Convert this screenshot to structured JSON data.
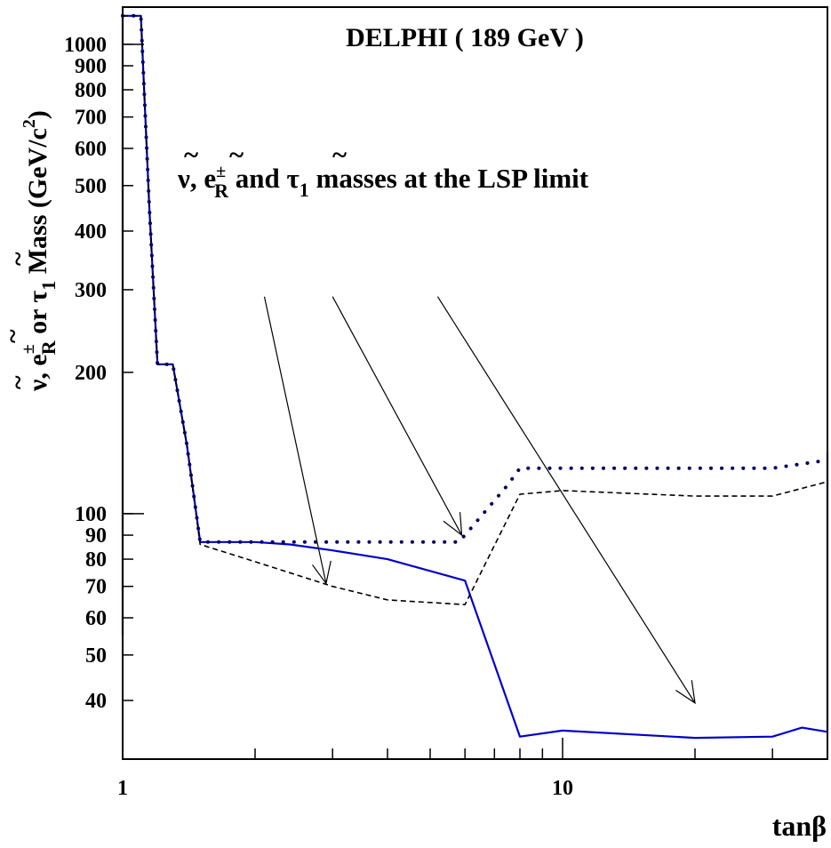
{
  "chart_data": {
    "type": "line",
    "title": "DELPHI ( 189 GeV )",
    "xlabel": "tanβ",
    "ylabel": "ν̃,  ẽR± or τ̃1  Mass (GeV/c²)",
    "ylabel_parts": {
      "nu": "ν",
      "sep1": ",  ",
      "e": "e",
      "e_sub": "R",
      "e_sup": "±",
      "or": " or ",
      "tau": "τ",
      "tau_sub": "1",
      "mass": "  Mass (GeV/c",
      "sq": "2",
      "close": ")"
    },
    "annotation_parts": {
      "nu": "ν",
      "sep": ",  ",
      "e": "e",
      "e_sub": "R",
      "e_sup": "±",
      "and": " and ",
      "tau": "τ",
      "tau_sub": "1",
      "rest": " masses at the LSP limit"
    },
    "annotation_tilde": "~",
    "xscale": "log",
    "yscale": "log",
    "xlim": [
      1,
      40
    ],
    "ylim": [
      30,
      1200
    ],
    "grid": false,
    "x_ticks": [
      {
        "value": 1,
        "label": "1"
      },
      {
        "value": 10,
        "label": "10"
      }
    ],
    "y_ticks": [
      {
        "value": 40,
        "label": "40"
      },
      {
        "value": 50,
        "label": "50"
      },
      {
        "value": 60,
        "label": "60"
      },
      {
        "value": 70,
        "label": "70"
      },
      {
        "value": 80,
        "label": "80"
      },
      {
        "value": 90,
        "label": "90"
      },
      {
        "value": 100,
        "label": "100"
      },
      {
        "value": 200,
        "label": "200"
      },
      {
        "value": 300,
        "label": "300"
      },
      {
        "value": 400,
        "label": "400"
      },
      {
        "value": 500,
        "label": "500"
      },
      {
        "value": 600,
        "label": "600"
      },
      {
        "value": 700,
        "label": "700"
      },
      {
        "value": 800,
        "label": "800"
      },
      {
        "value": 900,
        "label": "900"
      },
      {
        "value": 1000,
        "label": "1000"
      }
    ],
    "series": [
      {
        "style": "solid",
        "color": "#0000cc",
        "points": [
          [
            1.0,
            55
          ],
          [
            1.0,
            1150
          ],
          [
            1.1,
            1150
          ],
          [
            1.15,
            450
          ],
          [
            1.2,
            208
          ],
          [
            1.3,
            208
          ],
          [
            1.4,
            140
          ],
          [
            1.5,
            87
          ],
          [
            2.0,
            87
          ],
          [
            2.4,
            86
          ],
          [
            3.0,
            83.5
          ],
          [
            4.0,
            80
          ],
          [
            6.0,
            72
          ],
          [
            8.0,
            33.5
          ],
          [
            10.0,
            34.5
          ],
          [
            20.0,
            33.3
          ],
          [
            30.0,
            33.5
          ],
          [
            35.0,
            35
          ],
          [
            40.0,
            34.3
          ],
          [
            40.0,
            135
          ]
        ]
      },
      {
        "style": "dashed",
        "color": "#000000",
        "points": [
          [
            1.0,
            1150
          ],
          [
            1.1,
            1150
          ],
          [
            1.15,
            450
          ],
          [
            1.2,
            208
          ],
          [
            1.3,
            208
          ],
          [
            1.4,
            140
          ],
          [
            1.5,
            86
          ],
          [
            2.0,
            79
          ],
          [
            3.0,
            70
          ],
          [
            4.0,
            65.5
          ],
          [
            6.0,
            64
          ],
          [
            8.0,
            110
          ],
          [
            10.0,
            112
          ],
          [
            20.0,
            109
          ],
          [
            30.0,
            109
          ],
          [
            40.0,
            117
          ]
        ]
      },
      {
        "style": "dotted",
        "color": "#000066",
        "points": [
          [
            1.0,
            1150
          ],
          [
            1.1,
            1150
          ],
          [
            1.15,
            450
          ],
          [
            1.2,
            208
          ],
          [
            1.3,
            208
          ],
          [
            1.4,
            140
          ],
          [
            1.5,
            87
          ],
          [
            2.0,
            87
          ],
          [
            3.0,
            87
          ],
          [
            4.0,
            87
          ],
          [
            5.8,
            87
          ],
          [
            6.0,
            90
          ],
          [
            7.5,
            115
          ],
          [
            8.0,
            125
          ],
          [
            10.0,
            125
          ],
          [
            20.0,
            125
          ],
          [
            30.0,
            125
          ],
          [
            40.0,
            130
          ]
        ]
      }
    ],
    "arrows": [
      {
        "from": [
          2.1,
          290
        ],
        "to": [
          2.9,
          71
        ]
      },
      {
        "from": [
          3.0,
          290
        ],
        "to": [
          5.9,
          90
        ]
      },
      {
        "from": [
          5.2,
          290
        ],
        "to": [
          20.0,
          39.5
        ]
      }
    ]
  }
}
